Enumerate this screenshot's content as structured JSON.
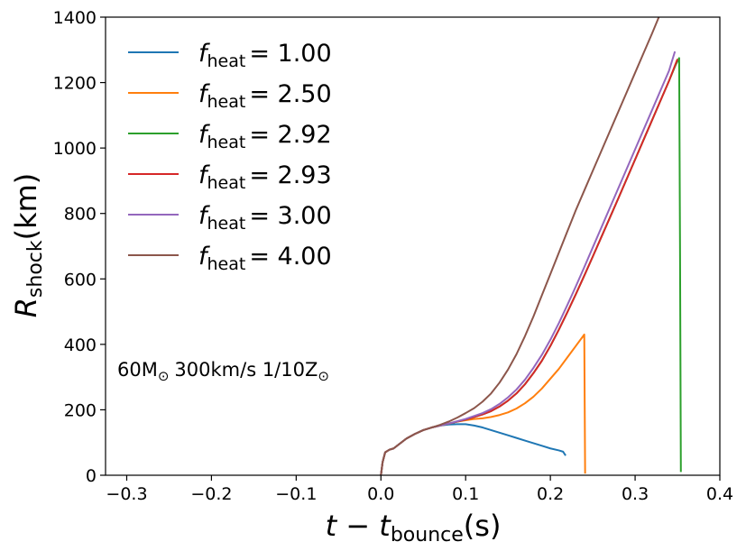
{
  "chart_data": {
    "type": "line",
    "title": "",
    "xlabel": {
      "main": "t − t",
      "sub": "bounce",
      "tail": "(s)"
    },
    "ylabel": {
      "main": "R",
      "sub": "shock",
      "tail": "(km)"
    },
    "xlim": [
      -0.325,
      0.4
    ],
    "ylim": [
      0,
      1400
    ],
    "xticks": [
      -0.3,
      -0.2,
      -0.1,
      0.0,
      0.1,
      0.2,
      0.3,
      0.4
    ],
    "xtick_labels": [
      "−0.3",
      "−0.2",
      "−0.1",
      "0.0",
      "0.1",
      "0.2",
      "0.3",
      "0.4"
    ],
    "yticks": [
      0,
      200,
      400,
      600,
      800,
      1000,
      1200,
      1400
    ],
    "ytick_labels": [
      "0",
      "200",
      "400",
      "600",
      "800",
      "1000",
      "1200",
      "1400"
    ],
    "grid": false,
    "legend_position": "top-left",
    "annotation": {
      "mass": "60M",
      "speed": "300km/s 1/10Z",
      "sun_symbol": "⊙"
    },
    "series": [
      {
        "name": "f_heat = 1.00",
        "label_f": "f",
        "label_sub": "heat",
        "label_value": "= 1.00",
        "color": "#1f77b4",
        "x": [
          0.0,
          0.002,
          0.005,
          0.01,
          0.015,
          0.02,
          0.03,
          0.04,
          0.05,
          0.06,
          0.07,
          0.08,
          0.09,
          0.1,
          0.11,
          0.12,
          0.13,
          0.14,
          0.15,
          0.16,
          0.17,
          0.18,
          0.19,
          0.2,
          0.21,
          0.215,
          0.218
        ],
        "y": [
          0,
          40,
          70,
          78,
          82,
          92,
          112,
          126,
          138,
          146,
          152,
          155,
          156,
          156,
          152,
          146,
          138,
          130,
          122,
          114,
          106,
          98,
          90,
          82,
          76,
          72,
          60
        ]
      },
      {
        "name": "f_heat = 2.50",
        "label_f": "f",
        "label_sub": "heat",
        "label_value": "= 2.50",
        "color": "#ff7f0e",
        "x": [
          0.0,
          0.002,
          0.005,
          0.01,
          0.015,
          0.02,
          0.03,
          0.04,
          0.05,
          0.06,
          0.07,
          0.08,
          0.09,
          0.1,
          0.11,
          0.12,
          0.13,
          0.14,
          0.15,
          0.16,
          0.17,
          0.18,
          0.19,
          0.2,
          0.21,
          0.22,
          0.23,
          0.24,
          0.2405,
          0.241
        ],
        "y": [
          0,
          40,
          70,
          78,
          82,
          92,
          112,
          126,
          138,
          146,
          152,
          158,
          164,
          168,
          172,
          174,
          178,
          184,
          192,
          204,
          220,
          240,
          265,
          295,
          325,
          360,
          395,
          430,
          215,
          5
        ]
      },
      {
        "name": "f_heat = 2.92",
        "label_f": "f",
        "label_sub": "heat",
        "label_value": "= 2.92",
        "color": "#2ca02c",
        "x": [
          0.0,
          0.002,
          0.005,
          0.01,
          0.015,
          0.02,
          0.03,
          0.04,
          0.05,
          0.06,
          0.07,
          0.08,
          0.09,
          0.1,
          0.11,
          0.12,
          0.13,
          0.14,
          0.15,
          0.16,
          0.17,
          0.18,
          0.19,
          0.2,
          0.21,
          0.22,
          0.23,
          0.24,
          0.25,
          0.26,
          0.27,
          0.28,
          0.29,
          0.3,
          0.31,
          0.32,
          0.33,
          0.34,
          0.348,
          0.352,
          0.353,
          0.354
        ],
        "y": [
          0,
          40,
          70,
          78,
          82,
          92,
          112,
          126,
          138,
          146,
          152,
          158,
          164,
          170,
          178,
          186,
          196,
          210,
          228,
          250,
          278,
          312,
          350,
          395,
          445,
          498,
          553,
          610,
          668,
          727,
          786,
          845,
          905,
          965,
          1025,
          1085,
          1145,
          1205,
          1255,
          1275,
          700,
          10
        ]
      },
      {
        "name": "f_heat = 2.93",
        "label_f": "f",
        "label_sub": "heat",
        "label_value": "= 2.93",
        "color": "#d62728",
        "x": [
          0.0,
          0.002,
          0.005,
          0.01,
          0.015,
          0.02,
          0.03,
          0.04,
          0.05,
          0.06,
          0.07,
          0.08,
          0.09,
          0.1,
          0.11,
          0.12,
          0.13,
          0.14,
          0.15,
          0.16,
          0.17,
          0.18,
          0.19,
          0.2,
          0.21,
          0.22,
          0.23,
          0.24,
          0.25,
          0.26,
          0.27,
          0.28,
          0.29,
          0.3,
          0.31,
          0.32,
          0.33,
          0.34,
          0.35
        ],
        "y": [
          0,
          40,
          70,
          78,
          82,
          92,
          112,
          126,
          138,
          146,
          152,
          158,
          164,
          170,
          178,
          186,
          196,
          210,
          228,
          250,
          278,
          312,
          350,
          395,
          445,
          498,
          553,
          610,
          668,
          727,
          786,
          845,
          905,
          965,
          1025,
          1085,
          1145,
          1205,
          1272
        ]
      },
      {
        "name": "f_heat = 3.00",
        "label_f": "f",
        "label_sub": "heat",
        "label_value": "= 3.00",
        "color": "#9467bd",
        "x": [
          0.0,
          0.002,
          0.005,
          0.01,
          0.015,
          0.02,
          0.03,
          0.04,
          0.05,
          0.06,
          0.07,
          0.08,
          0.09,
          0.1,
          0.11,
          0.12,
          0.13,
          0.14,
          0.15,
          0.16,
          0.17,
          0.18,
          0.19,
          0.2,
          0.21,
          0.22,
          0.23,
          0.24,
          0.25,
          0.26,
          0.27,
          0.28,
          0.29,
          0.3,
          0.31,
          0.32,
          0.33,
          0.34,
          0.347
        ],
        "y": [
          0,
          40,
          70,
          78,
          82,
          92,
          112,
          126,
          138,
          146,
          152,
          158,
          165,
          172,
          181,
          190,
          202,
          218,
          238,
          262,
          292,
          328,
          368,
          414,
          465,
          520,
          577,
          636,
          696,
          756,
          816,
          876,
          936,
          996,
          1056,
          1116,
          1176,
          1236,
          1295
        ]
      },
      {
        "name": "f_heat = 4.00",
        "label_f": "f",
        "label_sub": "heat",
        "label_value": "= 4.00",
        "color": "#8c564b",
        "x": [
          0.0,
          0.002,
          0.005,
          0.01,
          0.015,
          0.02,
          0.03,
          0.04,
          0.05,
          0.06,
          0.07,
          0.08,
          0.09,
          0.1,
          0.11,
          0.12,
          0.13,
          0.14,
          0.15,
          0.16,
          0.17,
          0.18,
          0.19,
          0.2,
          0.21,
          0.22,
          0.23,
          0.24,
          0.25,
          0.26,
          0.27,
          0.28,
          0.29,
          0.3,
          0.31,
          0.32,
          0.328
        ],
        "y": [
          0,
          40,
          70,
          78,
          82,
          92,
          112,
          126,
          138,
          146,
          154,
          164,
          176,
          190,
          205,
          225,
          250,
          283,
          323,
          370,
          425,
          485,
          550,
          615,
          680,
          745,
          810,
          870,
          930,
          990,
          1050,
          1110,
          1170,
          1230,
          1290,
          1350,
          1400
        ]
      }
    ]
  }
}
